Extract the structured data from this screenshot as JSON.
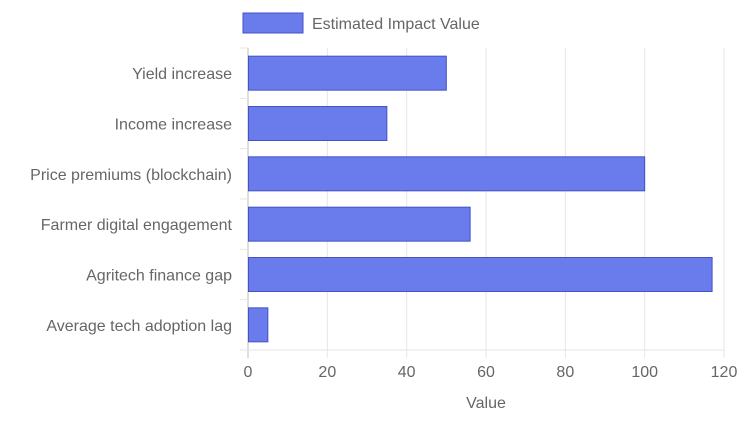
{
  "chart_data": {
    "type": "bar",
    "orientation": "horizontal",
    "categories": [
      "Yield increase",
      "Income increase",
      "Price premiums (blockchain)",
      "Farmer digital engagement",
      "Agritech finance gap",
      "Average tech adoption lag"
    ],
    "series": [
      {
        "name": "Estimated Impact Value",
        "values": [
          50,
          35,
          100,
          56,
          117,
          5
        ],
        "color": "#6a7bec",
        "border_color": "#4452c4"
      }
    ],
    "xlabel": "Value",
    "ylabel": "",
    "xlim": [
      0,
      120
    ],
    "x_ticks": [
      0,
      20,
      40,
      60,
      80,
      100,
      120
    ],
    "grid": true,
    "legend_position": "top"
  }
}
